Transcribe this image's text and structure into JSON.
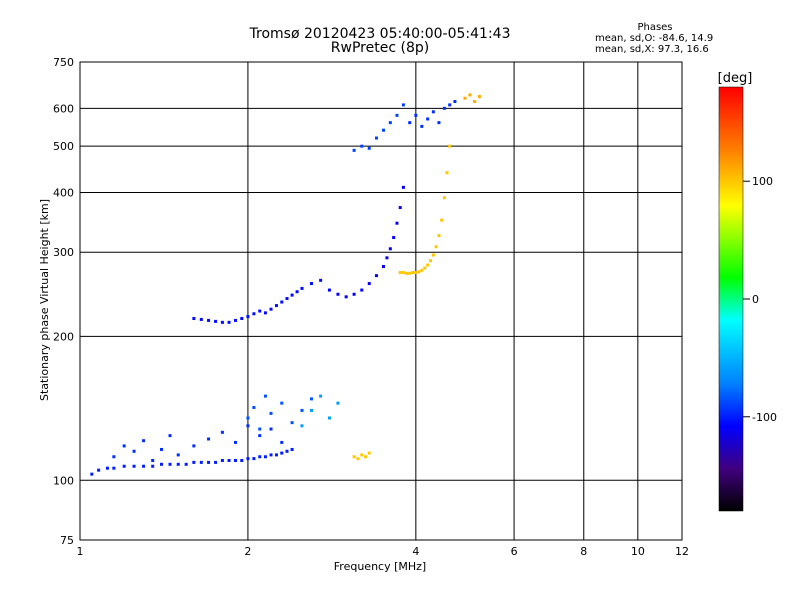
{
  "header": {
    "title_line1": "Tromsø 20120423 05:40:00-05:41:43",
    "title_line2": "RwPretec (8p)"
  },
  "phases": {
    "heading": "Phases",
    "line_o": "mean, sd,O:  -84.6, 14.9",
    "line_x": "mean, sd,X:  97.3, 16.6"
  },
  "chart_data": {
    "type": "scatter",
    "title": "Tromsø 20120423 05:40:00-05:41:43",
    "subtitle": "RwPretec (8p)",
    "xlabel": "Frequency [MHz]",
    "ylabel": "Stationary phase Virtual Height [km]",
    "x_scale": "log",
    "y_scale": "log",
    "xlim": [
      1,
      12
    ],
    "ylim": [
      75,
      750
    ],
    "x_ticks": [
      1,
      2,
      4,
      6,
      8,
      10,
      12
    ],
    "y_ticks": [
      75,
      100,
      200,
      300,
      400,
      500,
      600,
      750
    ],
    "grid": true,
    "colorbar": {
      "label": "[deg]",
      "range": [
        -180,
        180
      ],
      "ticks": [
        100,
        0,
        -100
      ]
    },
    "series": [
      {
        "phase_deg": -100,
        "x": [
          1.05,
          1.08,
          1.12,
          1.15,
          1.2,
          1.25,
          1.3,
          1.35,
          1.4,
          1.45,
          1.5,
          1.55,
          1.6,
          1.65,
          1.7,
          1.75,
          1.8,
          1.85,
          1.9,
          1.95,
          2.0,
          2.05,
          2.1,
          2.15,
          2.2,
          2.25,
          2.3,
          2.35,
          2.4
        ],
        "y": [
          103,
          105,
          106,
          106,
          107,
          107,
          107,
          107,
          108,
          108,
          108,
          108,
          109,
          109,
          109,
          109,
          110,
          110,
          110,
          110,
          111,
          111,
          112,
          112,
          113,
          113,
          114,
          115,
          116
        ]
      },
      {
        "phase_deg": -95,
        "x": [
          1.15,
          1.2,
          1.25,
          1.3,
          1.35,
          1.4,
          1.45,
          1.5,
          1.6,
          1.7,
          1.8,
          1.9,
          2.0,
          2.1,
          2.2,
          2.3
        ],
        "y": [
          112,
          118,
          115,
          121,
          110,
          116,
          124,
          113,
          118,
          122,
          126,
          120,
          130,
          124,
          128,
          120
        ]
      },
      {
        "phase_deg": -105,
        "x": [
          1.6,
          1.65,
          1.7,
          1.75,
          1.8,
          1.85,
          1.9,
          1.95,
          2.0,
          2.05,
          2.1,
          2.15,
          2.2,
          2.25,
          2.3,
          2.35,
          2.4,
          2.45,
          2.5,
          2.6,
          2.7
        ],
        "y": [
          218,
          217,
          216,
          215,
          214,
          214,
          216,
          218,
          220,
          223,
          226,
          224,
          228,
          232,
          236,
          240,
          244,
          248,
          252,
          258,
          262
        ]
      },
      {
        "phase_deg": -110,
        "x": [
          2.8,
          2.9,
          3.0,
          3.1,
          3.2,
          3.3,
          3.4,
          3.5,
          3.55,
          3.6,
          3.65,
          3.7,
          3.75,
          3.8
        ],
        "y": [
          250,
          245,
          242,
          245,
          250,
          258,
          268,
          280,
          292,
          305,
          322,
          345,
          372,
          410
        ]
      },
      {
        "phase_deg": -85,
        "x": [
          2.0,
          2.05,
          2.1,
          2.15,
          2.2,
          2.3,
          2.4,
          2.5,
          2.6
        ],
        "y": [
          135,
          142,
          128,
          150,
          138,
          145,
          132,
          140,
          148
        ]
      },
      {
        "phase_deg": -90,
        "x": [
          3.1,
          3.2,
          3.3,
          3.4,
          3.5,
          3.6,
          3.7,
          3.8
        ],
        "y": [
          490,
          500,
          495,
          520,
          540,
          560,
          580,
          610
        ]
      },
      {
        "phase_deg": -95,
        "x": [
          3.9,
          4.0,
          4.1,
          4.2,
          4.3,
          4.4,
          4.5,
          4.6,
          4.7
        ],
        "y": [
          560,
          580,
          550,
          570,
          590,
          560,
          600,
          610,
          620
        ]
      },
      {
        "phase_deg": 100,
        "x": [
          3.75,
          3.8,
          3.85,
          3.9,
          3.95,
          4.0,
          4.05,
          4.1,
          4.15,
          4.2,
          4.25,
          4.3,
          4.35,
          4.4,
          4.45,
          4.5,
          4.55,
          4.6
        ],
        "y": [
          272,
          272,
          271,
          271,
          272,
          272,
          273,
          275,
          278,
          282,
          288,
          296,
          308,
          325,
          350,
          390,
          440,
          500
        ]
      },
      {
        "phase_deg": 100,
        "x": [
          3.1,
          3.15,
          3.2,
          3.25,
          3.3
        ],
        "y": [
          112,
          111,
          113,
          112,
          114
        ]
      },
      {
        "phase_deg": 110,
        "x": [
          4.9,
          5.0,
          5.1,
          5.2
        ],
        "y": [
          630,
          640,
          620,
          635
        ]
      },
      {
        "phase_deg": -60,
        "x": [
          2.5,
          2.6,
          2.7,
          2.8,
          2.9
        ],
        "y": [
          130,
          140,
          150,
          135,
          145
        ]
      }
    ]
  }
}
